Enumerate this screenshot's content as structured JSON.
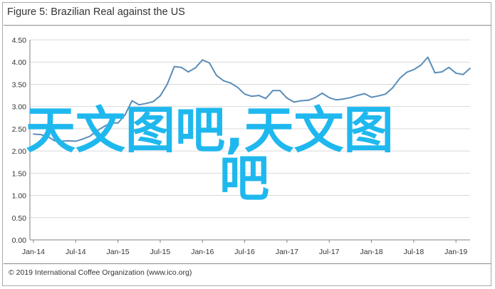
{
  "figure": {
    "title": "Figure 5: Brazilian Real against the US",
    "source": "© 2019 International Coffee Organization (www.ico.org)"
  },
  "watermark": {
    "line1": "天文图吧,天文图",
    "line2": "吧"
  },
  "colors": {
    "series_line": "#5b8db8",
    "grid": "#d9d9d9",
    "axis": "#808080",
    "watermark": "#1fb8ee"
  },
  "chart_data": {
    "type": "line",
    "title": "Figure 5: Brazilian Real against the US",
    "xlabel": "",
    "ylabel": "",
    "ylim": [
      0,
      4.5
    ],
    "y_ticks": [
      "0.00",
      "0.50",
      "1.00",
      "1.50",
      "2.00",
      "2.50",
      "3.00",
      "3.50",
      "4.00",
      "4.50"
    ],
    "x_tick_labels": [
      "Jan-14",
      "Jul-14",
      "Jan-15",
      "Jul-15",
      "Jan-16",
      "Jul-16",
      "Jan-17",
      "Jul-17",
      "Jan-18",
      "Jul-18",
      "Jan-19"
    ],
    "grid": "horizontal",
    "legend": "none",
    "x": [
      "Jan-14",
      "Feb-14",
      "Mar-14",
      "Apr-14",
      "May-14",
      "Jun-14",
      "Jul-14",
      "Aug-14",
      "Sep-14",
      "Oct-14",
      "Nov-14",
      "Dec-14",
      "Jan-15",
      "Feb-15",
      "Mar-15",
      "Apr-15",
      "May-15",
      "Jun-15",
      "Jul-15",
      "Aug-15",
      "Sep-15",
      "Oct-15",
      "Nov-15",
      "Dec-15",
      "Jan-16",
      "Feb-16",
      "Mar-16",
      "Apr-16",
      "May-16",
      "Jun-16",
      "Jul-16",
      "Aug-16",
      "Sep-16",
      "Oct-16",
      "Nov-16",
      "Dec-16",
      "Jan-17",
      "Feb-17",
      "Mar-17",
      "Apr-17",
      "May-17",
      "Jun-17",
      "Jul-17",
      "Aug-17",
      "Sep-17",
      "Oct-17",
      "Nov-17",
      "Dec-17",
      "Jan-18",
      "Feb-18",
      "Mar-18",
      "Apr-18",
      "May-18",
      "Jun-18",
      "Jul-18",
      "Aug-18",
      "Sep-18",
      "Oct-18",
      "Nov-18",
      "Dec-18",
      "Jan-19",
      "Feb-19",
      "Mar-19"
    ],
    "series": [
      {
        "values": [
          2.38,
          2.37,
          2.33,
          2.23,
          2.22,
          2.23,
          2.22,
          2.27,
          2.33,
          2.45,
          2.55,
          2.63,
          2.63,
          2.81,
          3.13,
          3.04,
          3.07,
          3.11,
          3.24,
          3.5,
          3.9,
          3.88,
          3.78,
          3.87,
          4.05,
          3.98,
          3.7,
          3.58,
          3.53,
          3.43,
          3.28,
          3.23,
          3.25,
          3.18,
          3.36,
          3.36,
          3.19,
          3.1,
          3.13,
          3.14,
          3.2,
          3.3,
          3.2,
          3.15,
          3.17,
          3.2,
          3.25,
          3.29,
          3.21,
          3.24,
          3.28,
          3.42,
          3.63,
          3.77,
          3.83,
          3.93,
          4.11,
          3.76,
          3.78,
          3.88,
          3.75,
          3.72,
          3.86
        ]
      }
    ]
  }
}
